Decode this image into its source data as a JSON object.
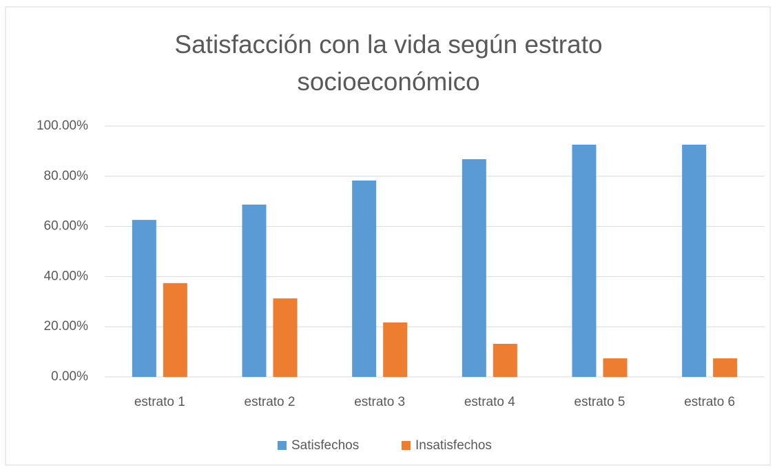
{
  "chart_data": {
    "type": "bar",
    "title": "Satisfacción con la vida según estrato socioeconómico",
    "categories": [
      "estrato 1",
      "estrato 2",
      "estrato 3",
      "estrato 4",
      "estrato 5",
      "estrato 6"
    ],
    "series": [
      {
        "name": "Satisfechos",
        "color": "#5b9bd5",
        "values": [
          62.6,
          68.7,
          78.3,
          86.8,
          92.6,
          92.6
        ]
      },
      {
        "name": "Insatisfechos",
        "color": "#ed7d31",
        "values": [
          37.4,
          31.3,
          21.7,
          13.2,
          7.4,
          7.4
        ]
      }
    ],
    "ylim": [
      0,
      100
    ],
    "yticks": [
      {
        "value": 0,
        "label": "0.00%"
      },
      {
        "value": 20,
        "label": "20.00%"
      },
      {
        "value": 40,
        "label": "40.00%"
      },
      {
        "value": 60,
        "label": "60.00%"
      },
      {
        "value": 80,
        "label": "80.00%"
      },
      {
        "value": 100,
        "label": "100.00%"
      }
    ],
    "grid": true,
    "legend": "bottom"
  }
}
